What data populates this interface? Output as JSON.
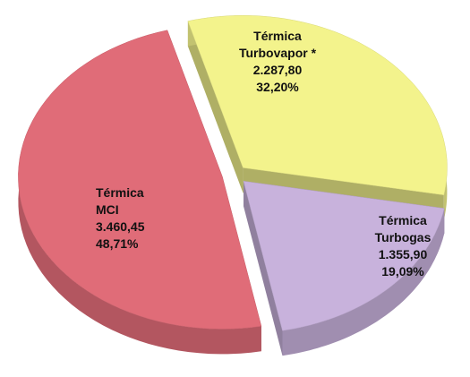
{
  "chart_data": {
    "type": "pie",
    "categories": [
      [
        "Térmica",
        "MCI"
      ],
      [
        "Térmica",
        "Turbovapor *"
      ],
      [
        "Térmica",
        "Turbogas"
      ]
    ],
    "values": [
      3460.45,
      2287.8,
      1355.9
    ],
    "value_labels": [
      "3.460,45",
      "2.287,80",
      "1.355,90"
    ],
    "shares": [
      48.71,
      32.2,
      19.09
    ],
    "share_labels": [
      "48,71%",
      "32,20%",
      "19,09%"
    ],
    "colors": [
      "#e06c78",
      "#f3f38c",
      "#c8b2dc"
    ]
  }
}
